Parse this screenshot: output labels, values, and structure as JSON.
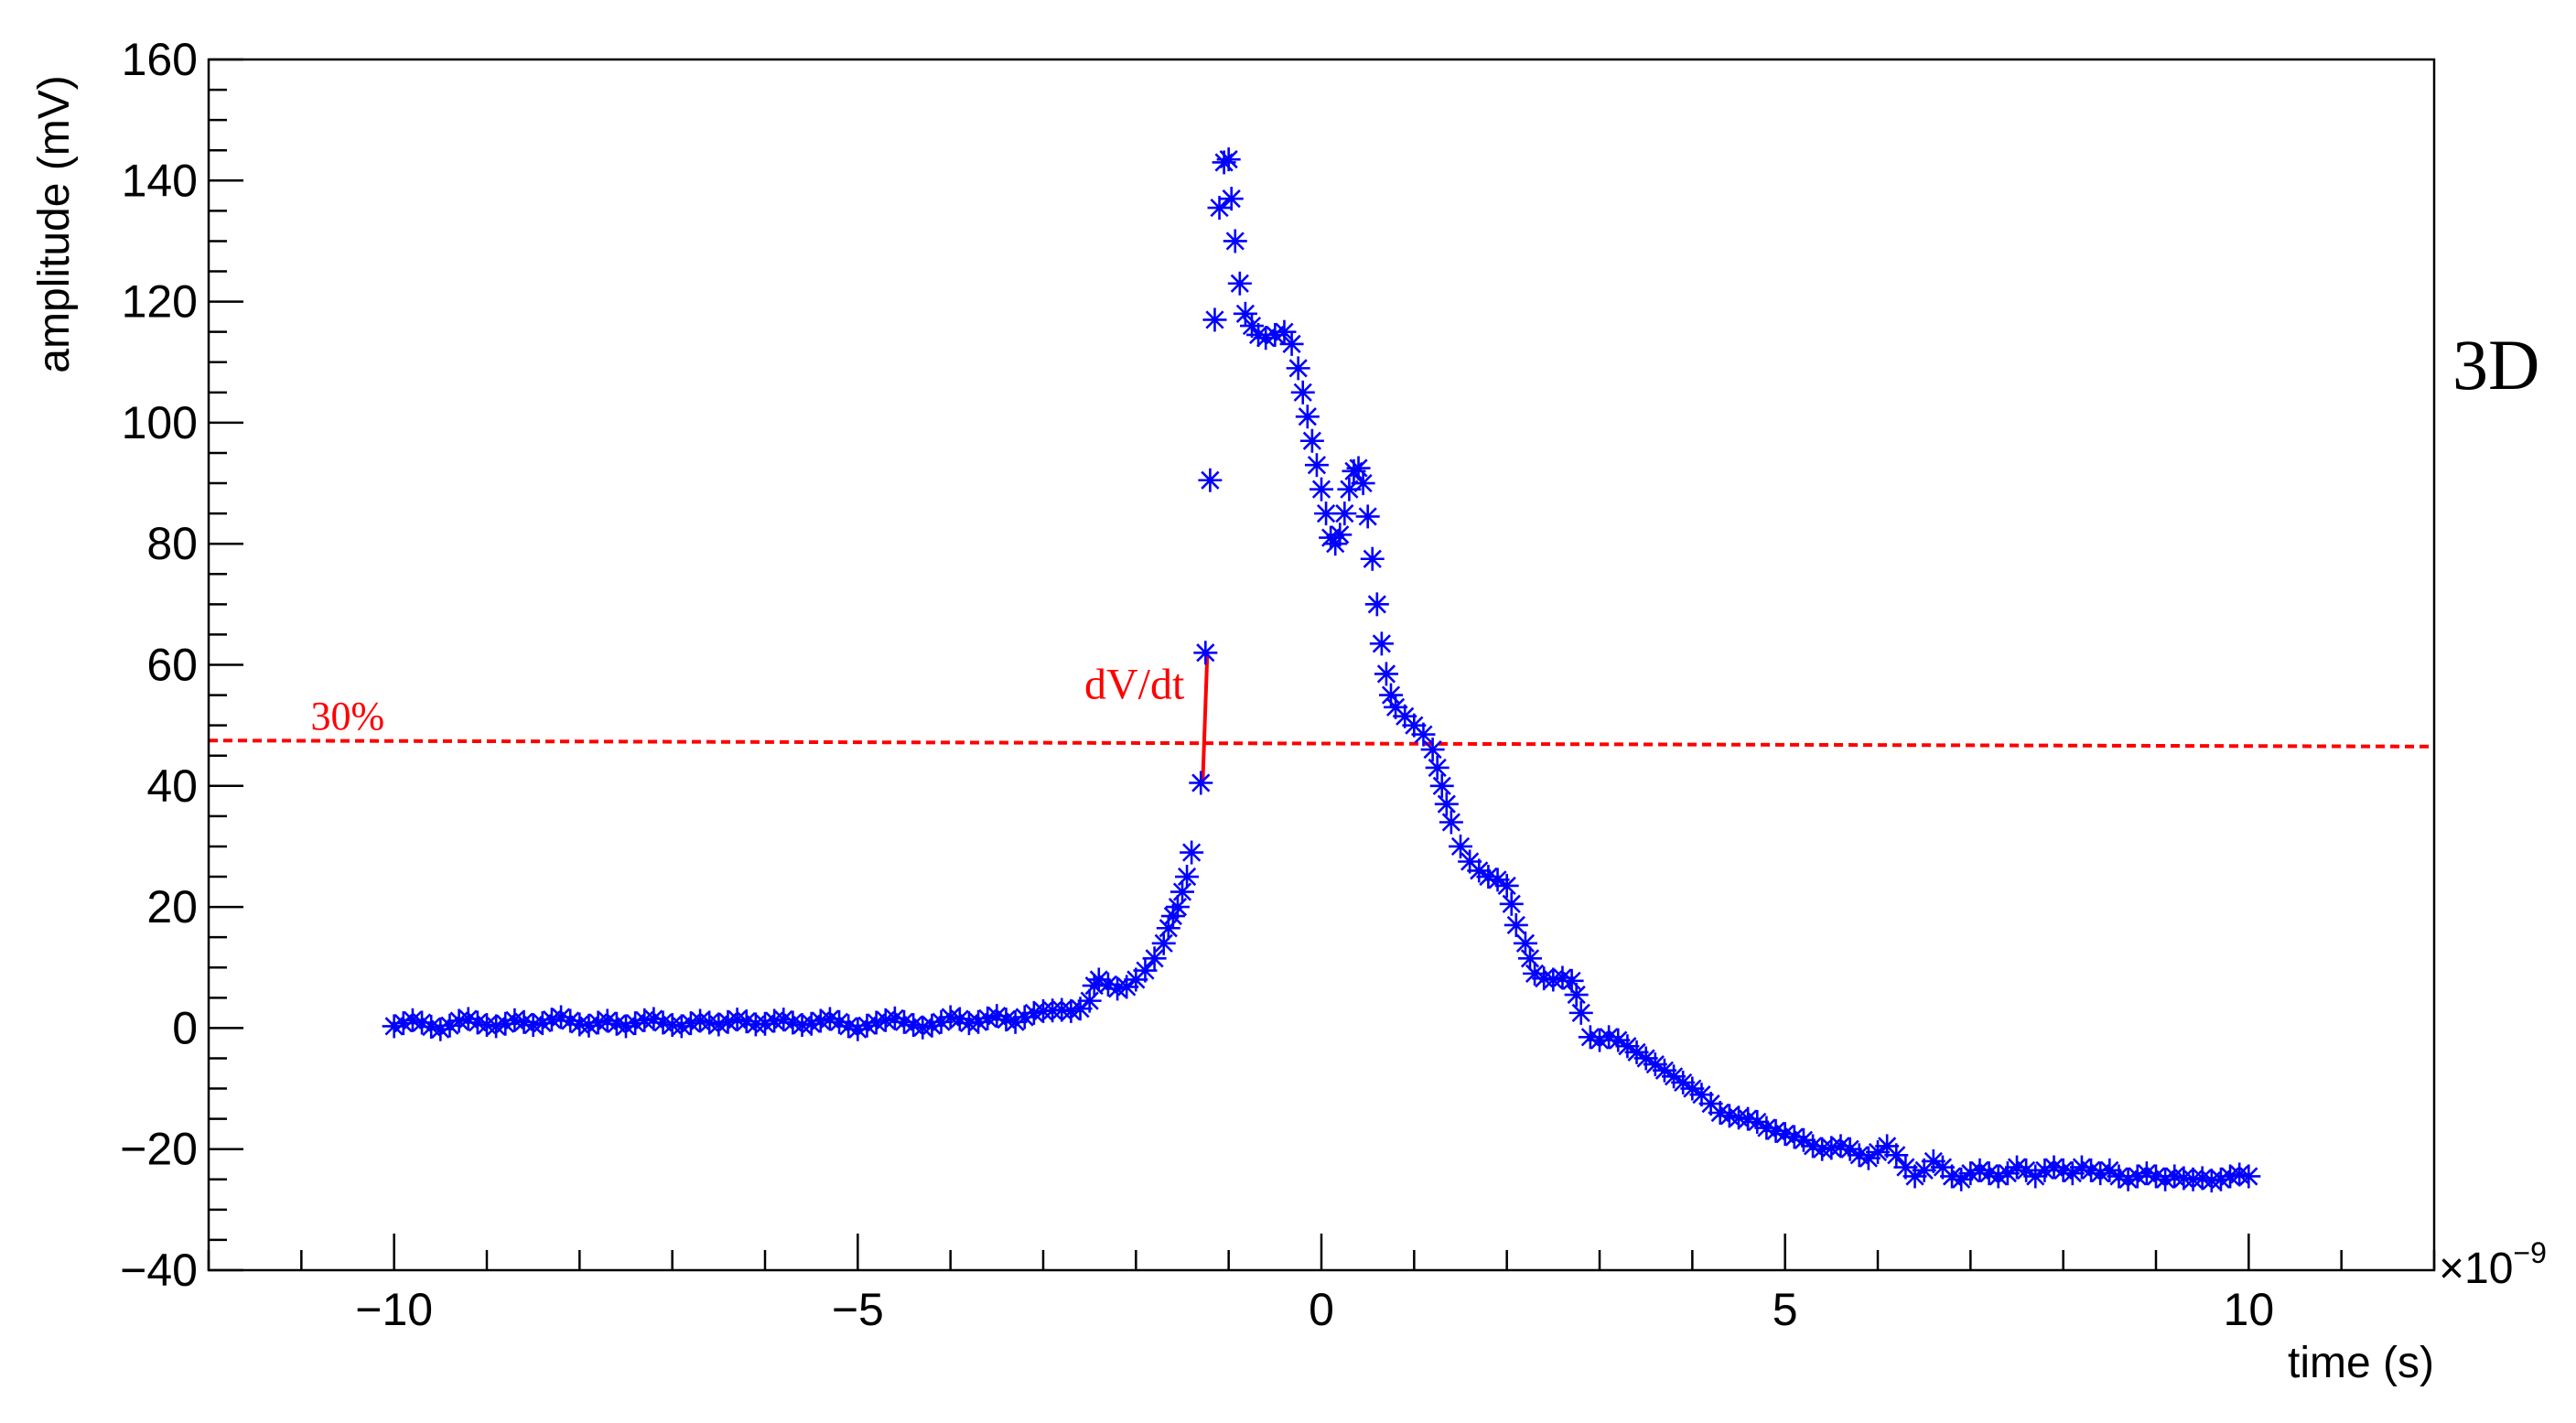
{
  "chart_data": {
    "type": "scatter",
    "title": "",
    "xlabel": "time (s)",
    "ylabel": "amplitude (mV)",
    "x_multiplier_label": "×10",
    "x_multiplier_exponent": "−9",
    "xlim": [
      -12,
      12
    ],
    "ylim": [
      -40,
      160
    ],
    "x_major_ticks": [
      -10,
      -5,
      0,
      5,
      10
    ],
    "x_tick_labels": [
      "−10",
      "−5",
      "0",
      "5",
      "10"
    ],
    "x_minor_step": 1,
    "y_major_ticks": [
      -40,
      -20,
      0,
      20,
      40,
      60,
      80,
      100,
      120,
      140,
      160
    ],
    "y_tick_labels": [
      "−40",
      "−20",
      "0",
      "20",
      "40",
      "60",
      "80",
      "100",
      "120",
      "140",
      "160"
    ],
    "y_minor_step": 5,
    "grid": false,
    "marker": "asterisk",
    "marker_color": "#0000ff",
    "series": [
      {
        "points": [
          [
            -10,
            0.3
          ],
          [
            -9.9,
            0.8
          ],
          [
            -9.8,
            1.3
          ],
          [
            -9.7,
            0.9
          ],
          [
            -9.6,
            0.2
          ],
          [
            -9.5,
            -0.2
          ],
          [
            -9.4,
            0.4
          ],
          [
            -9.3,
            1.2
          ],
          [
            -9.2,
            1.5
          ],
          [
            -9.1,
            0.9
          ],
          [
            -9.0,
            0.5
          ],
          [
            -8.9,
            0.3
          ],
          [
            -8.8,
            0.7
          ],
          [
            -8.7,
            1.3
          ],
          [
            -8.6,
            1.0
          ],
          [
            -8.5,
            0.5
          ],
          [
            -8.4,
            0.8
          ],
          [
            -8.3,
            1.4
          ],
          [
            -8.2,
            1.8
          ],
          [
            -8.1,
            1.2
          ],
          [
            -8.0,
            0.6
          ],
          [
            -7.9,
            0.4
          ],
          [
            -7.8,
            0.9
          ],
          [
            -7.7,
            1.2
          ],
          [
            -7.6,
            0.7
          ],
          [
            -7.5,
            0.3
          ],
          [
            -7.4,
            0.8
          ],
          [
            -7.3,
            1.3
          ],
          [
            -7.2,
            1.5
          ],
          [
            -7.1,
            0.9
          ],
          [
            -7.0,
            0.5
          ],
          [
            -6.9,
            0.3
          ],
          [
            -6.8,
            0.8
          ],
          [
            -6.7,
            1.2
          ],
          [
            -6.6,
            0.9
          ],
          [
            -6.5,
            0.6
          ],
          [
            -6.4,
            1.0
          ],
          [
            -6.3,
            1.4
          ],
          [
            -6.2,
            1.1
          ],
          [
            -6.1,
            0.6
          ],
          [
            -6.0,
            0.7
          ],
          [
            -5.9,
            1.2
          ],
          [
            -5.8,
            1.4
          ],
          [
            -5.7,
            0.9
          ],
          [
            -5.6,
            0.5
          ],
          [
            -5.5,
            0.7
          ],
          [
            -5.4,
            1.2
          ],
          [
            -5.3,
            1.5
          ],
          [
            -5.2,
            1.0
          ],
          [
            -5.1,
            0.3
          ],
          [
            -5.0,
            -0.2
          ],
          [
            -4.9,
            0.4
          ],
          [
            -4.8,
            0.9
          ],
          [
            -4.7,
            1.3
          ],
          [
            -4.6,
            1.6
          ],
          [
            -4.5,
            1.0
          ],
          [
            -4.4,
            0.5
          ],
          [
            -4.3,
            0.1
          ],
          [
            -4.2,
            0.4
          ],
          [
            -4.1,
            1.0
          ],
          [
            -4.0,
            1.8
          ],
          [
            -3.9,
            1.5
          ],
          [
            -3.8,
            0.8
          ],
          [
            -3.7,
            1.0
          ],
          [
            -3.6,
            1.6
          ],
          [
            -3.5,
            2.0
          ],
          [
            -3.4,
            1.4
          ],
          [
            -3.3,
            1.0
          ],
          [
            -3.2,
            1.8
          ],
          [
            -3.1,
            2.5
          ],
          [
            -3.0,
            2.8
          ],
          [
            -2.9,
            2.9
          ],
          [
            -2.8,
            3.0
          ],
          [
            -2.7,
            2.8
          ],
          [
            -2.6,
            3.2
          ],
          [
            -2.5,
            4.5
          ],
          [
            -2.45,
            7.0
          ],
          [
            -2.4,
            8.0
          ],
          [
            -2.3,
            7.2
          ],
          [
            -2.2,
            6.5
          ],
          [
            -2.1,
            6.8
          ],
          [
            -2.0,
            8.0
          ],
          [
            -1.9,
            9.5
          ],
          [
            -1.8,
            11.5
          ],
          [
            -1.7,
            14.0
          ],
          [
            -1.65,
            16.5
          ],
          [
            -1.6,
            18.5
          ],
          [
            -1.55,
            20.0
          ],
          [
            -1.5,
            22.5
          ],
          [
            -1.45,
            25.0
          ],
          [
            -1.4,
            29.0
          ],
          [
            -1.3,
            40.5
          ],
          [
            -1.25,
            62.0
          ],
          [
            -1.2,
            90.5
          ],
          [
            -1.15,
            117.0
          ],
          [
            -1.1,
            135.5
          ],
          [
            -1.05,
            143.0
          ],
          [
            -1.0,
            143.5
          ],
          [
            -0.97,
            137.0
          ],
          [
            -0.93,
            130.0
          ],
          [
            -0.88,
            123.0
          ],
          [
            -0.82,
            118.0
          ],
          [
            -0.75,
            116.0
          ],
          [
            -0.68,
            114.5
          ],
          [
            -0.6,
            114.0
          ],
          [
            -0.5,
            114.5
          ],
          [
            -0.4,
            115.0
          ],
          [
            -0.32,
            113.0
          ],
          [
            -0.25,
            109.0
          ],
          [
            -0.2,
            105.0
          ],
          [
            -0.15,
            101.0
          ],
          [
            -0.1,
            97.0
          ],
          [
            -0.05,
            93.0
          ],
          [
            0.0,
            89.0
          ],
          [
            0.05,
            85.0
          ],
          [
            0.1,
            81.0
          ],
          [
            0.15,
            80.0
          ],
          [
            0.2,
            81.5
          ],
          [
            0.25,
            85.0
          ],
          [
            0.3,
            89.0
          ],
          [
            0.35,
            92.0
          ],
          [
            0.4,
            92.5
          ],
          [
            0.45,
            90.0
          ],
          [
            0.5,
            84.5
          ],
          [
            0.55,
            77.5
          ],
          [
            0.6,
            70.0
          ],
          [
            0.65,
            63.5
          ],
          [
            0.7,
            58.5
          ],
          [
            0.75,
            55.0
          ],
          [
            0.8,
            53.0
          ],
          [
            0.9,
            51.5
          ],
          [
            1.0,
            50.0
          ],
          [
            1.1,
            48.5
          ],
          [
            1.2,
            46.0
          ],
          [
            1.25,
            43.0
          ],
          [
            1.3,
            40.0
          ],
          [
            1.35,
            37.0
          ],
          [
            1.4,
            34.0
          ],
          [
            1.5,
            30.0
          ],
          [
            1.6,
            27.5
          ],
          [
            1.7,
            26.0
          ],
          [
            1.8,
            25.0
          ],
          [
            1.9,
            24.5
          ],
          [
            2.0,
            23.5
          ],
          [
            2.05,
            20.5
          ],
          [
            2.1,
            17.0
          ],
          [
            2.2,
            14.0
          ],
          [
            2.25,
            11.5
          ],
          [
            2.3,
            9.0
          ],
          [
            2.4,
            8.2
          ],
          [
            2.5,
            8.0
          ],
          [
            2.6,
            8.3
          ],
          [
            2.7,
            7.8
          ],
          [
            2.75,
            5.5
          ],
          [
            2.8,
            2.5
          ],
          [
            2.9,
            -1.5
          ],
          [
            3.0,
            -2.0
          ],
          [
            3.1,
            -1.5
          ],
          [
            3.2,
            -2.0
          ],
          [
            3.3,
            -3.0
          ],
          [
            3.4,
            -4.0
          ],
          [
            3.5,
            -5.0
          ],
          [
            3.6,
            -6.0
          ],
          [
            3.7,
            -7.0
          ],
          [
            3.8,
            -8.0
          ],
          [
            3.9,
            -9.0
          ],
          [
            4.0,
            -10.0
          ],
          [
            4.1,
            -11.0
          ],
          [
            4.2,
            -12.5
          ],
          [
            4.3,
            -14.0
          ],
          [
            4.4,
            -14.5
          ],
          [
            4.5,
            -14.8
          ],
          [
            4.6,
            -15.0
          ],
          [
            4.7,
            -15.5
          ],
          [
            4.8,
            -16.5
          ],
          [
            4.9,
            -17.0
          ],
          [
            5.0,
            -17.5
          ],
          [
            5.1,
            -18.0
          ],
          [
            5.2,
            -18.5
          ],
          [
            5.3,
            -19.5
          ],
          [
            5.4,
            -20.0
          ],
          [
            5.5,
            -19.8
          ],
          [
            5.6,
            -19.5
          ],
          [
            5.7,
            -20.0
          ],
          [
            5.8,
            -21.0
          ],
          [
            5.9,
            -21.5
          ],
          [
            6.0,
            -20.5
          ],
          [
            6.1,
            -19.5
          ],
          [
            6.2,
            -21.0
          ],
          [
            6.3,
            -23.0
          ],
          [
            6.4,
            -24.5
          ],
          [
            6.5,
            -23.5
          ],
          [
            6.6,
            -22.0
          ],
          [
            6.7,
            -23.0
          ],
          [
            6.8,
            -24.5
          ],
          [
            6.9,
            -25.0
          ],
          [
            7.0,
            -24.0
          ],
          [
            7.1,
            -23.5
          ],
          [
            7.2,
            -24.0
          ],
          [
            7.3,
            -24.5
          ],
          [
            7.4,
            -24.0
          ],
          [
            7.5,
            -23.0
          ],
          [
            7.6,
            -23.5
          ],
          [
            7.7,
            -24.5
          ],
          [
            7.8,
            -23.5
          ],
          [
            7.9,
            -23.0
          ],
          [
            8.0,
            -23.5
          ],
          [
            8.1,
            -24.0
          ],
          [
            8.2,
            -23.0
          ],
          [
            8.3,
            -23.5
          ],
          [
            8.4,
            -24.0
          ],
          [
            8.5,
            -23.5
          ],
          [
            8.6,
            -24.5
          ],
          [
            8.7,
            -25.0
          ],
          [
            8.8,
            -24.5
          ],
          [
            8.9,
            -24.0
          ],
          [
            9.0,
            -24.5
          ],
          [
            9.1,
            -25.0
          ],
          [
            9.2,
            -24.5
          ],
          [
            9.3,
            -24.8
          ],
          [
            9.4,
            -25.0
          ],
          [
            9.5,
            -24.8
          ],
          [
            9.6,
            -25.2
          ],
          [
            9.7,
            -25.0
          ],
          [
            9.8,
            -24.5
          ],
          [
            9.9,
            -24.2
          ],
          [
            10.0,
            -24.5
          ]
        ]
      }
    ],
    "threshold_line": {
      "label": "30%",
      "y_start": 47.5,
      "y_end": 46.5,
      "color": "#ff0000",
      "style": "dashed"
    },
    "slope_annotation": {
      "label": "dV/dt",
      "x": -1.28,
      "y_low": 40.5,
      "y_high": 62.0,
      "color": "#ff0000"
    },
    "side_label": "3D"
  }
}
